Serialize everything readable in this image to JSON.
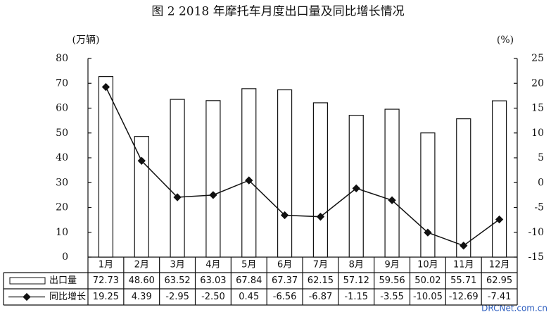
{
  "chart_data": {
    "type": "bar-line",
    "title": "图 2   2018 年摩托车月度出口量及同比增长情况",
    "y_label": "(万辆)",
    "y2_label": "(%)",
    "categories": [
      "1月",
      "2月",
      "3月",
      "4月",
      "5月",
      "6月",
      "7月",
      "8月",
      "9月",
      "10月",
      "11月",
      "12月"
    ],
    "series": [
      {
        "name": "出口量",
        "type": "bar",
        "color": "#ffffff",
        "values": [
          72.73,
          48.6,
          63.52,
          63.03,
          67.84,
          67.37,
          62.15,
          57.12,
          59.56,
          50.02,
          55.71,
          62.95
        ],
        "value_labels": [
          "72.73",
          "48.60",
          "63.52",
          "63.03",
          "67.84",
          "67.37",
          "62.15",
          "57.12",
          "59.56",
          "50.02",
          "55.71",
          "62.95"
        ]
      },
      {
        "name": "同比增长",
        "type": "line",
        "axis": "y2",
        "color": "#111111",
        "values": [
          19.25,
          4.39,
          -2.95,
          -2.5,
          0.45,
          -6.56,
          -6.87,
          -1.15,
          -3.55,
          -10.05,
          -12.69,
          -7.41
        ],
        "value_labels": [
          "19.25",
          "4.39",
          "-2.95",
          "-2.50",
          "0.45",
          "-6.56",
          "-6.87",
          "-1.15",
          "-3.55",
          "-10.05",
          "-12.69",
          "-7.41"
        ]
      }
    ],
    "ylim": [
      0,
      80
    ],
    "yticks": [
      0,
      10,
      20,
      30,
      40,
      50,
      60,
      70,
      80
    ],
    "y2lim": [
      -15,
      25
    ],
    "y2ticks": [
      -15,
      -10,
      -5,
      0,
      5,
      10,
      15,
      20,
      25
    ]
  },
  "watermark": "DRCNet.com.cn"
}
